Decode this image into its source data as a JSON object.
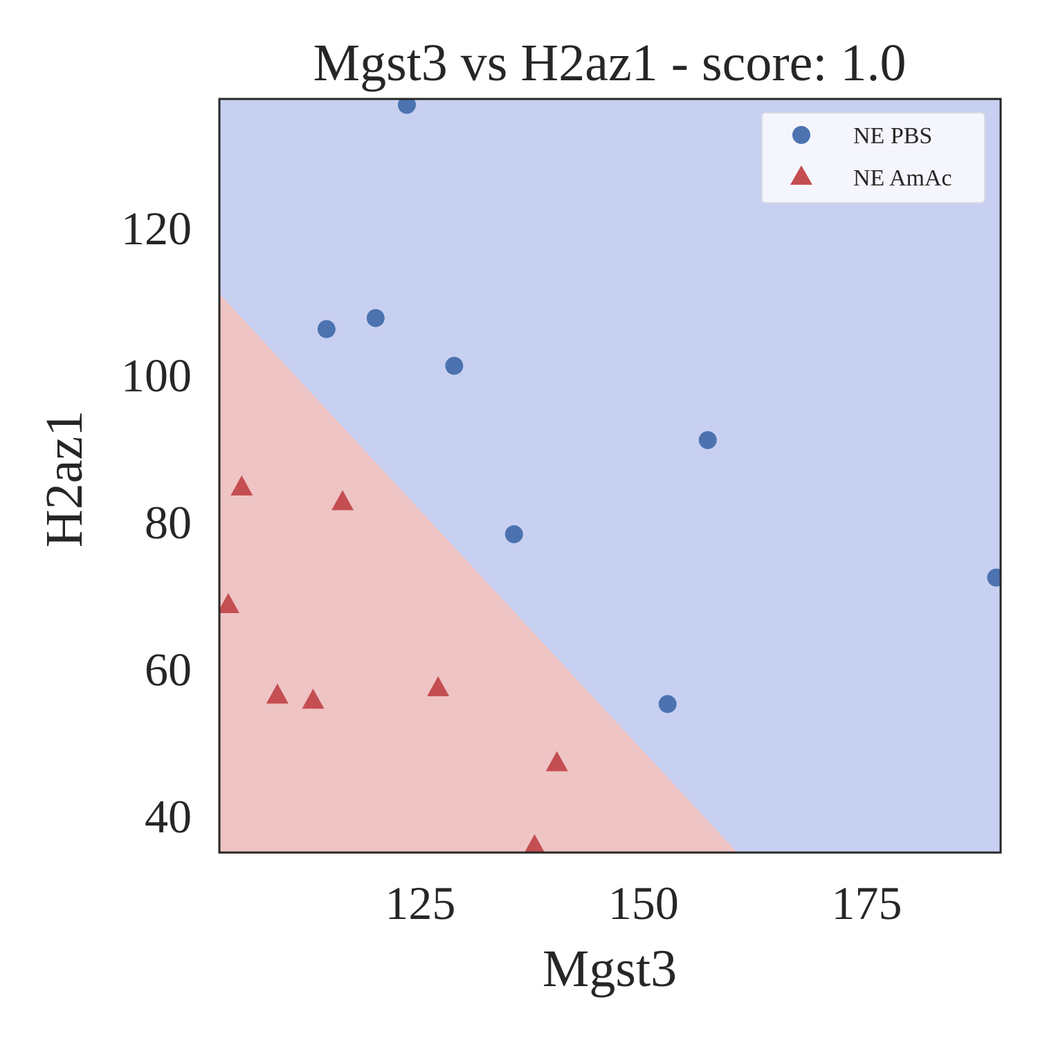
{
  "chart_data": {
    "type": "scatter",
    "title": "Mgst3 vs H2az1 - score: 1.0",
    "xlabel": "Mgst3",
    "ylabel": "H2az1",
    "xlim": [
      102.5,
      190
    ],
    "ylim": [
      35,
      137.5
    ],
    "xticks": [
      125,
      150,
      175
    ],
    "yticks": [
      40,
      60,
      80,
      100,
      120
    ],
    "grid": false,
    "legend_position": "top-right",
    "decision_boundary": {
      "points": [
        [
          102.5,
          111.0
        ],
        [
          160.5,
          35
        ]
      ],
      "below_color": "#efc4c4",
      "above_color": "#c8d0f1"
    },
    "series": [
      {
        "name": "NE PBS",
        "marker": "circle",
        "color": "#4c72b0",
        "points": [
          [
            123.5,
            136.7
          ],
          [
            114.5,
            106.2
          ],
          [
            120.0,
            107.7
          ],
          [
            128.8,
            101.2
          ],
          [
            135.5,
            78.3
          ],
          [
            157.2,
            91.1
          ],
          [
            152.7,
            55.2
          ],
          [
            189.5,
            72.4
          ]
        ]
      },
      {
        "name": "NE AmAc",
        "marker": "triangle",
        "color": "#c44e52",
        "points": [
          [
            105.0,
            84.6
          ],
          [
            103.5,
            68.6
          ],
          [
            109.0,
            56.3
          ],
          [
            113.0,
            55.6
          ],
          [
            116.3,
            82.6
          ],
          [
            127.0,
            57.3
          ],
          [
            140.3,
            47.1
          ],
          [
            137.8,
            35.8
          ]
        ]
      }
    ]
  }
}
